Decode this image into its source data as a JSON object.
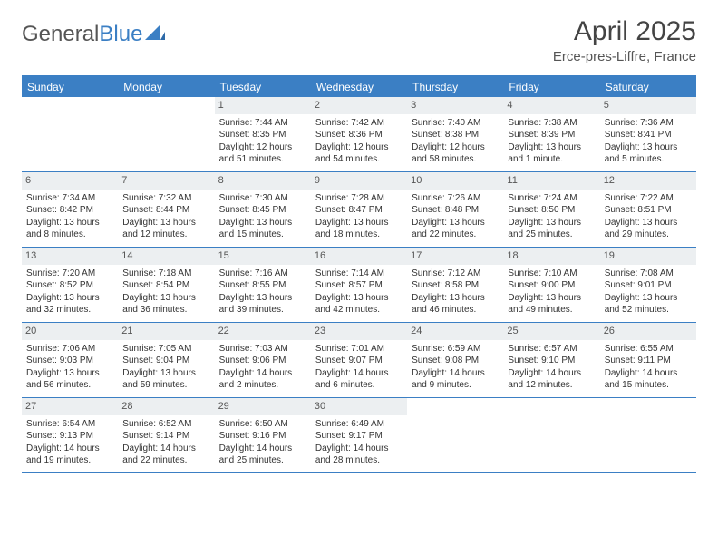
{
  "logo": {
    "text1": "General",
    "text2": "Blue"
  },
  "title": "April 2025",
  "subtitle": "Erce-pres-Liffre, France",
  "colors": {
    "accent": "#3b7fc4",
    "header_bg": "#3b7fc4",
    "daynum_bg": "#eceff1",
    "text": "#333333",
    "title_color": "#444444",
    "border": "#3b7fc4"
  },
  "day_names": [
    "Sunday",
    "Monday",
    "Tuesday",
    "Wednesday",
    "Thursday",
    "Friday",
    "Saturday"
  ],
  "weeks": [
    [
      null,
      null,
      {
        "n": "1",
        "sr": "7:44 AM",
        "ss": "8:35 PM",
        "dl": "12 hours and 51 minutes."
      },
      {
        "n": "2",
        "sr": "7:42 AM",
        "ss": "8:36 PM",
        "dl": "12 hours and 54 minutes."
      },
      {
        "n": "3",
        "sr": "7:40 AM",
        "ss": "8:38 PM",
        "dl": "12 hours and 58 minutes."
      },
      {
        "n": "4",
        "sr": "7:38 AM",
        "ss": "8:39 PM",
        "dl": "13 hours and 1 minute."
      },
      {
        "n": "5",
        "sr": "7:36 AM",
        "ss": "8:41 PM",
        "dl": "13 hours and 5 minutes."
      }
    ],
    [
      {
        "n": "6",
        "sr": "7:34 AM",
        "ss": "8:42 PM",
        "dl": "13 hours and 8 minutes."
      },
      {
        "n": "7",
        "sr": "7:32 AM",
        "ss": "8:44 PM",
        "dl": "13 hours and 12 minutes."
      },
      {
        "n": "8",
        "sr": "7:30 AM",
        "ss": "8:45 PM",
        "dl": "13 hours and 15 minutes."
      },
      {
        "n": "9",
        "sr": "7:28 AM",
        "ss": "8:47 PM",
        "dl": "13 hours and 18 minutes."
      },
      {
        "n": "10",
        "sr": "7:26 AM",
        "ss": "8:48 PM",
        "dl": "13 hours and 22 minutes."
      },
      {
        "n": "11",
        "sr": "7:24 AM",
        "ss": "8:50 PM",
        "dl": "13 hours and 25 minutes."
      },
      {
        "n": "12",
        "sr": "7:22 AM",
        "ss": "8:51 PM",
        "dl": "13 hours and 29 minutes."
      }
    ],
    [
      {
        "n": "13",
        "sr": "7:20 AM",
        "ss": "8:52 PM",
        "dl": "13 hours and 32 minutes."
      },
      {
        "n": "14",
        "sr": "7:18 AM",
        "ss": "8:54 PM",
        "dl": "13 hours and 36 minutes."
      },
      {
        "n": "15",
        "sr": "7:16 AM",
        "ss": "8:55 PM",
        "dl": "13 hours and 39 minutes."
      },
      {
        "n": "16",
        "sr": "7:14 AM",
        "ss": "8:57 PM",
        "dl": "13 hours and 42 minutes."
      },
      {
        "n": "17",
        "sr": "7:12 AM",
        "ss": "8:58 PM",
        "dl": "13 hours and 46 minutes."
      },
      {
        "n": "18",
        "sr": "7:10 AM",
        "ss": "9:00 PM",
        "dl": "13 hours and 49 minutes."
      },
      {
        "n": "19",
        "sr": "7:08 AM",
        "ss": "9:01 PM",
        "dl": "13 hours and 52 minutes."
      }
    ],
    [
      {
        "n": "20",
        "sr": "7:06 AM",
        "ss": "9:03 PM",
        "dl": "13 hours and 56 minutes."
      },
      {
        "n": "21",
        "sr": "7:05 AM",
        "ss": "9:04 PM",
        "dl": "13 hours and 59 minutes."
      },
      {
        "n": "22",
        "sr": "7:03 AM",
        "ss": "9:06 PM",
        "dl": "14 hours and 2 minutes."
      },
      {
        "n": "23",
        "sr": "7:01 AM",
        "ss": "9:07 PM",
        "dl": "14 hours and 6 minutes."
      },
      {
        "n": "24",
        "sr": "6:59 AM",
        "ss": "9:08 PM",
        "dl": "14 hours and 9 minutes."
      },
      {
        "n": "25",
        "sr": "6:57 AM",
        "ss": "9:10 PM",
        "dl": "14 hours and 12 minutes."
      },
      {
        "n": "26",
        "sr": "6:55 AM",
        "ss": "9:11 PM",
        "dl": "14 hours and 15 minutes."
      }
    ],
    [
      {
        "n": "27",
        "sr": "6:54 AM",
        "ss": "9:13 PM",
        "dl": "14 hours and 19 minutes."
      },
      {
        "n": "28",
        "sr": "6:52 AM",
        "ss": "9:14 PM",
        "dl": "14 hours and 22 minutes."
      },
      {
        "n": "29",
        "sr": "6:50 AM",
        "ss": "9:16 PM",
        "dl": "14 hours and 25 minutes."
      },
      {
        "n": "30",
        "sr": "6:49 AM",
        "ss": "9:17 PM",
        "dl": "14 hours and 28 minutes."
      },
      null,
      null,
      null
    ]
  ],
  "labels": {
    "sunrise": "Sunrise:",
    "sunset": "Sunset:",
    "daylight": "Daylight:"
  }
}
